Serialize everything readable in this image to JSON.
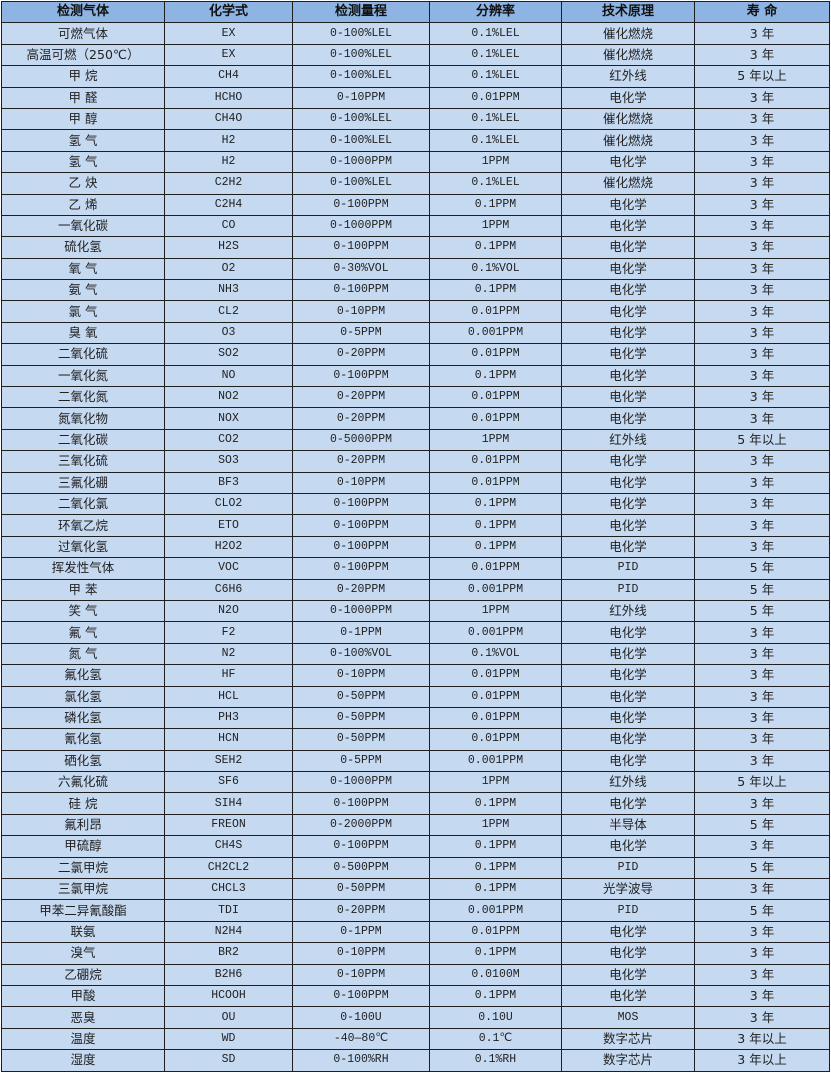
{
  "colors": {
    "header_bg": "#8db4e2",
    "cell_bg": "#c5d9f1",
    "border": "#1f1f1f"
  },
  "table": {
    "headers": [
      "检测气体",
      "化学式",
      "检测量程",
      "分辨率",
      "技术原理",
      "寿  命"
    ],
    "rows": [
      [
        "可燃气体",
        "EX",
        "0-100%LEL",
        "0.1%LEL",
        "催化燃烧",
        "3 年"
      ],
      [
        "高温可燃（250℃）",
        "EX",
        "0-100%LEL",
        "0.1%LEL",
        "催化燃烧",
        "3 年"
      ],
      [
        "甲 烷",
        "CH4",
        "0-100%LEL",
        "0.1%LEL",
        "红外线",
        "5 年以上"
      ],
      [
        "甲 醛",
        "HCHO",
        "0-10PPM",
        "0.01PPM",
        "电化学",
        "3 年"
      ],
      [
        "甲 醇",
        "CH4O",
        "0-100%LEL",
        "0.1%LEL",
        "催化燃烧",
        "3 年"
      ],
      [
        "氢 气",
        "H2",
        "0-100%LEL",
        "0.1%LEL",
        "催化燃烧",
        "3 年"
      ],
      [
        "氢 气",
        "H2",
        "0-1000PPM",
        "1PPM",
        "电化学",
        "3 年"
      ],
      [
        "乙 炔",
        "C2H2",
        "0-100%LEL",
        "0.1%LEL",
        "催化燃烧",
        "3 年"
      ],
      [
        "乙 烯",
        "C2H4",
        "0-100PPM",
        "0.1PPM",
        "电化学",
        "3 年"
      ],
      [
        "一氧化碳",
        "CO",
        "0-1000PPM",
        "1PPM",
        "电化学",
        "3 年"
      ],
      [
        "硫化氢",
        "H2S",
        "0-100PPM",
        "0.1PPM",
        "电化学",
        "3 年"
      ],
      [
        "氧 气",
        "O2",
        "0-30%VOL",
        "0.1%VOL",
        "电化学",
        "3 年"
      ],
      [
        "氨 气",
        "NH3",
        "0-100PPM",
        "0.1PPM",
        "电化学",
        "3 年"
      ],
      [
        "氯 气",
        "CL2",
        "0-10PPM",
        "0.01PPM",
        "电化学",
        "3 年"
      ],
      [
        "臭 氧",
        "O3",
        "0-5PPM",
        "0.001PPM",
        "电化学",
        "3 年"
      ],
      [
        "二氧化硫",
        "SO2",
        "0-20PPM",
        "0.01PPM",
        "电化学",
        "3 年"
      ],
      [
        "一氧化氮",
        "NO",
        "0-100PPM",
        "0.1PPM",
        "电化学",
        "3 年"
      ],
      [
        "二氧化氮",
        "NO2",
        "0-20PPM",
        "0.01PPM",
        "电化学",
        "3 年"
      ],
      [
        "氮氧化物",
        "NOX",
        "0-20PPM",
        "0.01PPM",
        "电化学",
        "3 年"
      ],
      [
        "二氧化碳",
        "CO2",
        "0-5000PPM",
        "1PPM",
        "红外线",
        "5 年以上"
      ],
      [
        "三氧化硫",
        "SO3",
        "0-20PPM",
        "0.01PPM",
        "电化学",
        "3 年"
      ],
      [
        "三氟化硼",
        "BF3",
        "0-10PPM",
        "0.01PPM",
        "电化学",
        "3 年"
      ],
      [
        "二氧化氯",
        "CLO2",
        "0-100PPM",
        "0.1PPM",
        "电化学",
        "3 年"
      ],
      [
        "环氧乙烷",
        "ETO",
        "0-100PPM",
        "0.1PPM",
        "电化学",
        "3 年"
      ],
      [
        "过氧化氢",
        "H2O2",
        "0-100PPM",
        "0.1PPM",
        "电化学",
        "3 年"
      ],
      [
        "挥发性气体",
        "VOC",
        "0-100PPM",
        "0.01PPM",
        "PID",
        "5 年"
      ],
      [
        "甲 苯",
        "C6H6",
        "0-20PPM",
        "0.001PPM",
        "PID",
        "5 年"
      ],
      [
        "笑 气",
        "N2O",
        "0-1000PPM",
        "1PPM",
        "红外线",
        "5 年"
      ],
      [
        "氟 气",
        "F2",
        "0-1PPM",
        "0.001PPM",
        "电化学",
        "3 年"
      ],
      [
        "氮 气",
        "N2",
        "0-100%VOL",
        "0.1%VOL",
        "电化学",
        "3 年"
      ],
      [
        "氟化氢",
        "HF",
        "0-10PPM",
        "0.01PPM",
        "电化学",
        "3 年"
      ],
      [
        "氯化氢",
        "HCL",
        "0-50PPM",
        "0.01PPM",
        "电化学",
        "3 年"
      ],
      [
        "磷化氢",
        "PH3",
        "0-50PPM",
        "0.01PPM",
        "电化学",
        "3 年"
      ],
      [
        "氰化氢",
        "HCN",
        "0-50PPM",
        "0.01PPM",
        "电化学",
        "3 年"
      ],
      [
        "硒化氢",
        "SEH2",
        "0-5PPM",
        "0.001PPM",
        "电化学",
        "3 年"
      ],
      [
        "六氟化硫",
        "SF6",
        "0-1000PPM",
        "1PPM",
        "红外线",
        "5 年以上"
      ],
      [
        "硅 烷",
        "SIH4",
        "0-100PPM",
        "0.1PPM",
        "电化学",
        "3 年"
      ],
      [
        "氟利昂",
        "FREON",
        "0-2000PPM",
        "1PPM",
        "半导体",
        "5 年"
      ],
      [
        "甲硫醇",
        "CH4S",
        "0-100PPM",
        "0.1PPM",
        "电化学",
        "3 年"
      ],
      [
        "二氯甲烷",
        "CH2CL2",
        "0-500PPM",
        "0.1PPM",
        "PID",
        "5 年"
      ],
      [
        "三氯甲烷",
        "CHCL3",
        "0-50PPM",
        "0.1PPM",
        "光学波导",
        "3 年"
      ],
      [
        "甲苯二异氰酸酯",
        "TDI",
        "0-20PPM",
        "0.001PPM",
        "PID",
        "5 年"
      ],
      [
        "联氨",
        "N2H4",
        "0-1PPM",
        "0.01PPM",
        "电化学",
        "3 年"
      ],
      [
        "溴气",
        "BR2",
        "0-10PPM",
        "0.1PPM",
        "电化学",
        "3 年"
      ],
      [
        "乙硼烷",
        "B2H6",
        "0-10PPM",
        "0.0100M",
        "电化学",
        "3 年"
      ],
      [
        "甲酸",
        "HCOOH",
        "0-100PPM",
        "0.1PPM",
        "电化学",
        "3 年"
      ],
      [
        "恶臭",
        "OU",
        "0-100U",
        "0.10U",
        "MOS",
        "3 年"
      ],
      [
        "温度",
        "WD",
        "-40—80℃",
        "0.1℃",
        "数字芯片",
        "3 年以上"
      ],
      [
        "湿度",
        "SD",
        "0-100%RH",
        "0.1%RH",
        "数字芯片",
        "3 年以上"
      ]
    ]
  }
}
